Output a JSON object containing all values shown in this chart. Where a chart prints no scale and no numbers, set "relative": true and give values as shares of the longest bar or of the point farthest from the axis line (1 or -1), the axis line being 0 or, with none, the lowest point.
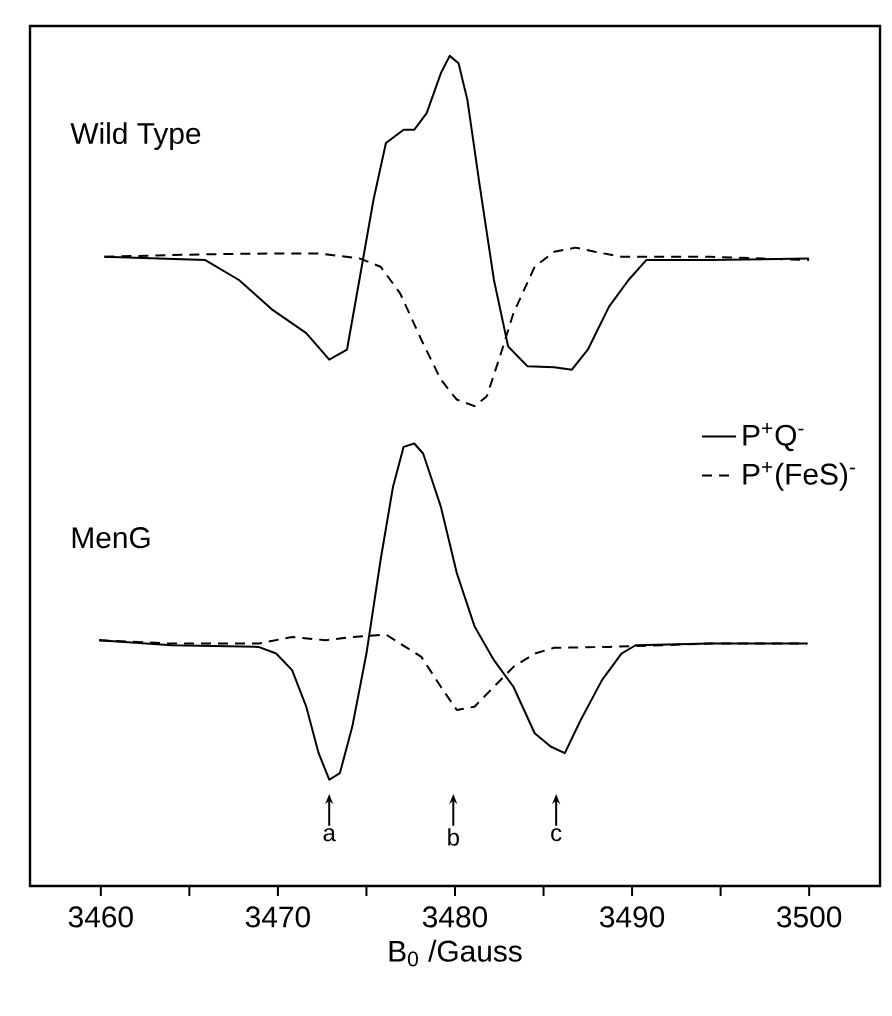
{
  "chart_data": {
    "type": "line",
    "xlabel": "B$_{0}$ /Gauss",
    "relative": true,
    "xlim": [
      3456,
      3504
    ],
    "xticks": [
      3460,
      {
        "value": 3465,
        "label": null
      },
      3470,
      {
        "value": 3475,
        "label": null
      },
      3480,
      {
        "value": 3485,
        "label": null
      },
      3490,
      {
        "value": 3495,
        "label": null
      },
      3500
    ],
    "legend": "right",
    "marker": "none",
    "grid": false,
    "annotations": [
      "Wild Type",
      "MenG",
      "a",
      "b",
      "c"
    ],
    "series": [
      {
        "name": "P$^{+}$Q$^{-}$",
        "color": "#000000",
        "line_style": "solid",
        "x": [
          3460.2,
          3465.9,
          3467.8,
          3469.7,
          3471.6,
          3472.9,
          3473.9,
          3474.6,
          3475.4,
          3476.1,
          3477.1,
          3477.7,
          3478.4,
          3479.2,
          3479.7,
          3480.2,
          3480.7,
          3481.4,
          3482.2,
          3483.0,
          3484.1,
          3485.6,
          3486.6,
          3487.5,
          3488.7,
          3489.8,
          3490.8,
          3494.4,
          3500.0
        ],
        "values": [
          0.758,
          0.754,
          0.73,
          0.694,
          0.666,
          0.634,
          0.646,
          0.73,
          0.827,
          0.895,
          0.911,
          0.911,
          0.931,
          0.979,
          1.0,
          0.991,
          0.947,
          0.843,
          0.73,
          0.65,
          0.626,
          0.625,
          0.622,
          0.646,
          0.698,
          0.73,
          0.754,
          0.754,
          0.756
        ]
      },
      {
        "name": "P$^{+}$(FeS)$^{-}$",
        "color": "#000000",
        "line_style": "dashed",
        "x": [
          3460.2,
          3465.9,
          3469.7,
          3472.3,
          3474.6,
          3475.8,
          3476.9,
          3478.1,
          3479.2,
          3480.1,
          3481.1,
          3481.8,
          3482.6,
          3483.3,
          3484.5,
          3485.6,
          3486.8,
          3487.9,
          3489.4,
          3494.4,
          3500.0
        ],
        "values": [
          0.758,
          0.761,
          0.762,
          0.762,
          0.756,
          0.746,
          0.714,
          0.658,
          0.61,
          0.586,
          0.578,
          0.59,
          0.642,
          0.69,
          0.746,
          0.764,
          0.769,
          0.764,
          0.758,
          0.758,
          0.754
        ]
      },
      {
        "color": "#000000",
        "line_style": "solid",
        "x": [
          3459.9,
          3464.0,
          3468.9,
          3469.9,
          3470.8,
          3471.6,
          3472.3,
          3472.9,
          3473.5,
          3474.2,
          3475.0,
          3475.8,
          3476.5,
          3477.1,
          3477.7,
          3478.2,
          3479.2,
          3480.1,
          3481.1,
          3482.2,
          3483.3,
          3484.5,
          3485.4,
          3486.2,
          3487.1,
          3488.3,
          3489.4,
          3490.2,
          3494.4,
          3499.9
        ],
        "values": [
          0.296,
          0.29,
          0.288,
          0.28,
          0.26,
          0.216,
          0.16,
          0.128,
          0.136,
          0.192,
          0.28,
          0.393,
          0.481,
          0.529,
          0.533,
          0.521,
          0.457,
          0.377,
          0.313,
          0.272,
          0.24,
          0.184,
          0.168,
          0.16,
          0.2,
          0.248,
          0.28,
          0.29,
          0.292,
          0.292
        ]
      },
      {
        "color": "#000000",
        "line_style": "dashed",
        "x": [
          3459.9,
          3464.0,
          3468.9,
          3470.8,
          3472.7,
          3474.2,
          3476.1,
          3476.9,
          3478.1,
          3479.2,
          3480.1,
          3481.1,
          3482.2,
          3483.3,
          3484.5,
          3485.6,
          3488.7,
          3494.4,
          3499.9
        ],
        "values": [
          0.296,
          0.292,
          0.292,
          0.3,
          0.296,
          0.3,
          0.303,
          0.292,
          0.276,
          0.24,
          0.212,
          0.216,
          0.24,
          0.264,
          0.28,
          0.287,
          0.288,
          0.292,
          0.292
        ]
      }
    ]
  }
}
